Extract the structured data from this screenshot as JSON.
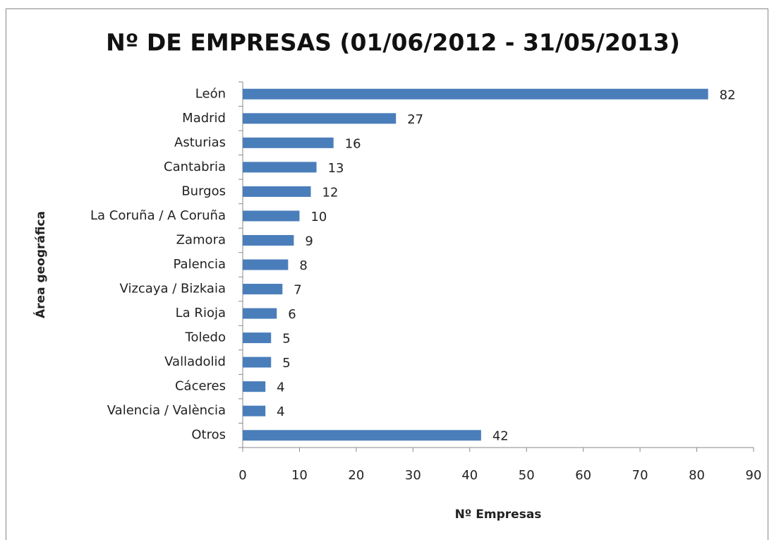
{
  "chart_data": {
    "type": "bar",
    "orientation": "horizontal",
    "title": "Nº DE EMPRESAS (01/06/2012 - 31/05/2013)",
    "xlabel": "Nº Empresas",
    "ylabel": "Área geográfica",
    "categories": [
      "León",
      "Madrid",
      "Asturias",
      "Cantabria",
      "Burgos",
      "La Coruña / A Coruña",
      "Zamora",
      "Palencia",
      "Vizcaya / Bizkaia",
      "La Rioja",
      "Toledo",
      "Valladolid",
      "Cáceres",
      "Valencia / València",
      "Otros"
    ],
    "values": [
      82,
      27,
      16,
      13,
      12,
      10,
      9,
      8,
      7,
      6,
      5,
      5,
      4,
      4,
      42
    ],
    "color": "#4a7ebb",
    "xlim": [
      0,
      90
    ],
    "xticks": [
      0,
      10,
      20,
      30,
      40,
      50,
      60,
      70,
      80,
      90
    ],
    "grid": false
  }
}
